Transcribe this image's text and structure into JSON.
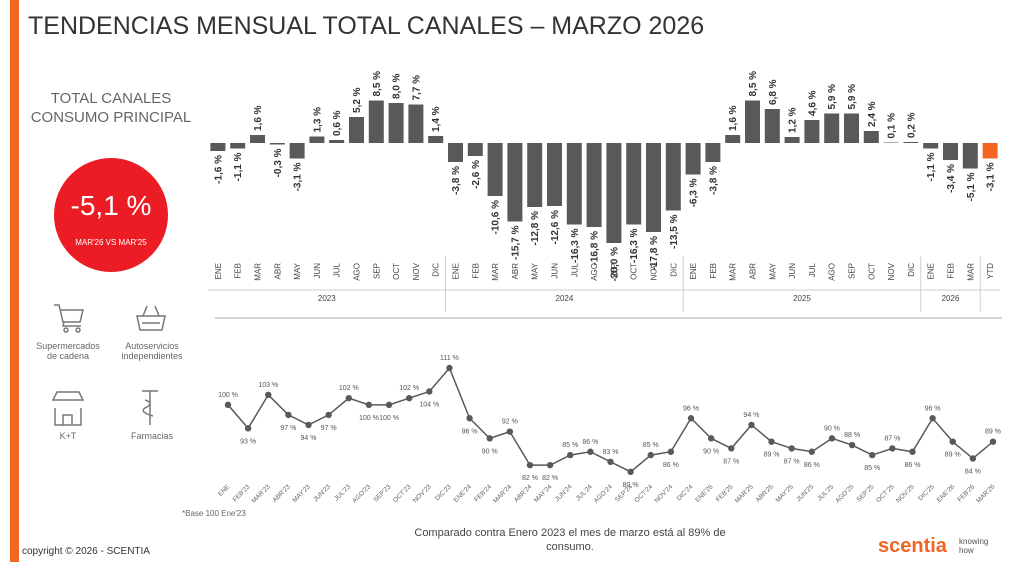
{
  "title": "TENDENCIAS MENSUAL TOTAL CANALES – MARZO 2026",
  "panel": {
    "heading": [
      "TOTAL CANALES",
      "CONSUMO PRINCIPAL"
    ],
    "kpi": {
      "value": -5.1,
      "value_label": "-5,1 %",
      "caption": "MAR'26 VS MAR'25",
      "color": "#ec1c24"
    },
    "channels": [
      [
        "Supermercados",
        "de cadena"
      ],
      [
        "Autoservicios",
        "independientes"
      ],
      [
        "K+T"
      ],
      [
        "Farmacias"
      ]
    ]
  },
  "chart_data": [
    {
      "type": "bar",
      "groups": [
        {
          "label": "2023",
          "color": "#595959",
          "categories": [
            "ENE",
            "FEB",
            "MAR",
            "ABR",
            "MAY",
            "JUN",
            "JUL",
            "AGO",
            "SEP",
            "OCT",
            "NOV",
            "DIC"
          ],
          "values": [
            -1.6,
            -1.1,
            1.6,
            -0.3,
            -3.1,
            1.3,
            0.6,
            5.2,
            8.5,
            8.0,
            7.7,
            1.4
          ],
          "value_labels": [
            "-1,6 %",
            "-1,1 %",
            "1,6 %",
            "-0,3 %",
            "-3,1 %",
            "1,3 %",
            "0,6 %",
            "5,2 %",
            "8,5 %",
            "8,0 %",
            "7,7 %",
            "1,4 %"
          ]
        },
        {
          "label": "2024",
          "color": "#595959",
          "categories": [
            "ENE",
            "FEB",
            "MAR",
            "ABR",
            "MAY",
            "JUN",
            "JUL",
            "AGO",
            "SEP",
            "OCT",
            "NOV",
            "DIC"
          ],
          "values": [
            -3.8,
            -2.6,
            -10.6,
            -15.7,
            -12.8,
            -12.6,
            -16.3,
            -16.8,
            -20.0,
            -16.3,
            -17.8,
            -13.5
          ],
          "value_labels": [
            "-3,8 %",
            "-2,6 %",
            "-10,6 %",
            "-15,7 %",
            "-12,8 %",
            "-12,6 %",
            "-16,3 %",
            "-16,8 %",
            "-20,0 %",
            "-16,3 %",
            "-17,8 %",
            "-13,5 %"
          ]
        },
        {
          "label": "2025",
          "color": "#595959",
          "categories": [
            "ENE",
            "FEB",
            "MAR",
            "ABR",
            "MAY",
            "JUN",
            "JUL",
            "AGO",
            "SEP",
            "OCT",
            "NOV",
            "DIC"
          ],
          "values": [
            -6.3,
            -3.8,
            1.6,
            8.5,
            6.8,
            1.2,
            4.6,
            5.9,
            5.9,
            2.4,
            0.1,
            0.2
          ],
          "value_labels": [
            "-6,3 %",
            "-3,8 %",
            "1,6 %",
            "8,5 %",
            "6,8 %",
            "1,2 %",
            "4,6 %",
            "5,9 %",
            "5,9 %",
            "2,4 %",
            "0,1 %",
            "0,2 %"
          ]
        },
        {
          "label": "2026",
          "color": "#595959",
          "categories": [
            "ENE",
            "FEB",
            "MAR"
          ],
          "values": [
            -1.1,
            -3.4,
            -5.1
          ],
          "value_labels": [
            "-1,1 %",
            "-3,4 %",
            "-5,1 %"
          ]
        },
        {
          "color": "#f26522",
          "categories": [
            "YTD"
          ],
          "values": [
            -3.1
          ],
          "value_labels": [
            "-3,1 %"
          ]
        }
      ]
    },
    {
      "type": "line",
      "color": "#595959",
      "categories": [
        "ENE",
        "FEB'23",
        "MAR'23",
        "ABR'23",
        "MAY'23",
        "JUN'23",
        "JUL'23",
        "AGO'23",
        "SEP'23",
        "OCT'23",
        "NOV'23",
        "DIC'23",
        "ENE'24",
        "FEB'24",
        "MAR'24",
        "ABR'24",
        "MAY'24",
        "JUN'24",
        "JUL'24",
        "AGO'24",
        "SEP'24",
        "OCT'24",
        "NOV'24",
        "DIC'24",
        "ENE'25",
        "FEB'25",
        "MAR'25",
        "ABR'25",
        "MAY'25",
        "JUN'25",
        "JUL'25",
        "AGO'25",
        "SEP'25",
        "OCT'25",
        "NOV'25",
        "DIC'25",
        "ENE'26",
        "FEB'26",
        "MAR'26"
      ],
      "values": [
        100,
        93,
        103,
        97,
        94,
        97,
        102,
        100,
        100,
        102,
        104,
        111,
        96,
        90,
        92,
        82,
        82,
        85,
        86,
        83,
        80,
        85,
        86,
        96,
        90,
        87,
        94,
        89,
        87,
        86,
        90,
        88,
        85,
        87,
        86,
        96,
        89,
        84,
        89
      ],
      "value_labels": [
        "100 %",
        "93 %",
        "103 %",
        "97 %",
        "94 %",
        "97 %",
        "102 %",
        "100 %",
        "100 %",
        "102 %",
        "104 %",
        "111 %",
        "96 %",
        "90 %",
        "92 %",
        "82 %",
        "82 %",
        "85 %",
        "86 %",
        "83 %",
        "80 %",
        "85 %",
        "86 %",
        "96 %",
        "90 %",
        "87 %",
        "94 %",
        "89 %",
        "87 %",
        "86 %",
        "90 %",
        "88 %",
        "85 %",
        "87 %",
        "86 %",
        "96 %",
        "89 %",
        "84 %",
        "89 %"
      ],
      "footnote": "*Base 100 Ene'23",
      "note": "Comparado contra Enero 2023 el mes de marzo está al 89% de consumo."
    }
  ],
  "footer": {
    "copyright": "copyright © 2026 - SCENTIA",
    "brand": "scentia",
    "tagline": [
      "knowing",
      "how"
    ]
  }
}
